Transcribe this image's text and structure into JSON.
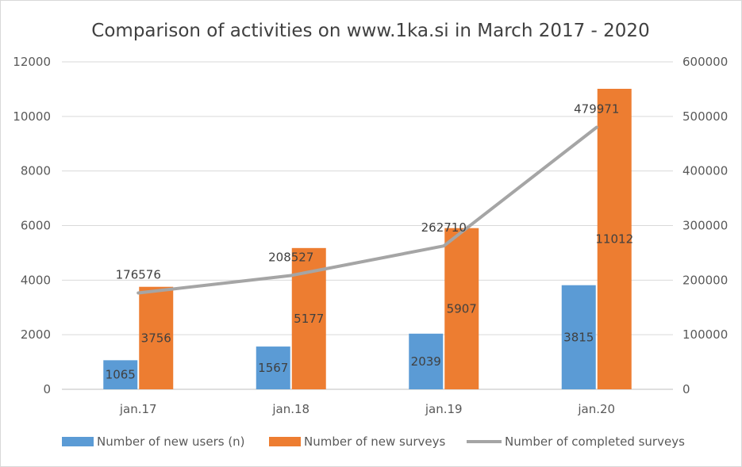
{
  "chart_data": {
    "type": "bar",
    "title": "Comparison of activities on www.1ka.si in March 2017 - 2020",
    "categories": [
      "jan.17",
      "jan.18",
      "jan.19",
      "jan.20"
    ],
    "y_left": {
      "min": 0,
      "max": 12000,
      "ticks": [
        0,
        2000,
        4000,
        6000,
        8000,
        10000,
        12000
      ]
    },
    "y_right": {
      "min": 0,
      "max": 600000,
      "ticks": [
        0,
        100000,
        200000,
        300000,
        400000,
        500000,
        600000
      ]
    },
    "series": [
      {
        "name": "Number of new users (n)",
        "type": "bar",
        "axis": "left",
        "color": "#5b9bd5",
        "values": [
          1065,
          1567,
          2039,
          3815
        ]
      },
      {
        "name": "Number of new surveys",
        "type": "bar",
        "axis": "left",
        "color": "#ed7d31",
        "values": [
          3756,
          5177,
          5907,
          11012
        ]
      },
      {
        "name": "Number of completed surveys",
        "type": "line",
        "axis": "right",
        "color": "#a5a5a5",
        "values": [
          176576,
          208527,
          262710,
          479971
        ]
      }
    ],
    "grid": true,
    "legend_position": "bottom"
  }
}
